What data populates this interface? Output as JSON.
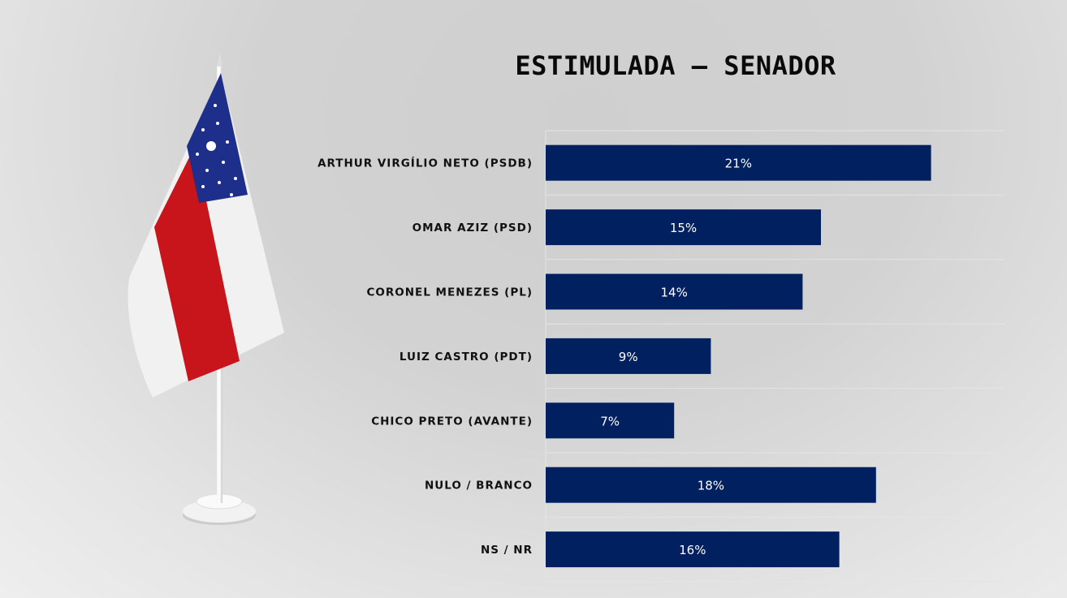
{
  "chart_data": {
    "type": "bar",
    "orientation": "horizontal",
    "title": "ESTIMULADA – SENADOR",
    "categories": [
      "ARTHUR VIRGÍLIO NETO (PSDB)",
      "OMAR AZIZ (PSD)",
      "CORONEL MENEZES (PL)",
      "LUIZ CASTRO (PDT)",
      "CHICO PRETO (AVANTE)",
      "NULO / BRANCO",
      "NS / NR"
    ],
    "values": [
      21,
      15,
      14,
      9,
      7,
      18,
      16
    ],
    "labels": [
      "21%",
      "15%",
      "14%",
      "9%",
      "7%",
      "18%",
      "16%"
    ],
    "xlim": [
      0,
      25
    ],
    "grid": true,
    "bar_color": "#00205f"
  },
  "decoration": {
    "flag": "amazonas-state-table-flag"
  }
}
